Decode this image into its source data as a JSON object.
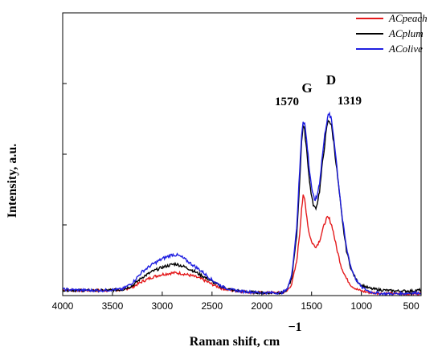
{
  "chart_data": {
    "type": "line",
    "xlabel": "Raman shift, cm",
    "xlabel_superscript": "−1",
    "ylabel": "Intensity, a.u.",
    "xlim": [
      4000,
      400
    ],
    "x_reversed": true,
    "x_ticks": [
      4000,
      3500,
      3000,
      2500,
      2000,
      1500,
      1000,
      500
    ],
    "y_tick_count": 4,
    "ylim": [
      0,
      100
    ],
    "legend_placement": "top-right",
    "annotations": {
      "G_label": "G",
      "D_label": "D",
      "G_position": "1570",
      "D_position": "1319"
    },
    "series": [
      {
        "name": "ACpeach",
        "color": "#e41a1c",
        "points": [
          [
            4000,
            2.0
          ],
          [
            3800,
            1.8
          ],
          [
            3600,
            1.8
          ],
          [
            3400,
            2.0
          ],
          [
            3300,
            3.0
          ],
          [
            3200,
            5.0
          ],
          [
            3100,
            6.5
          ],
          [
            3000,
            7.5
          ],
          [
            2900,
            8.0
          ],
          [
            2850,
            8.0
          ],
          [
            2800,
            7.8
          ],
          [
            2700,
            7.0
          ],
          [
            2600,
            5.8
          ],
          [
            2500,
            4.0
          ],
          [
            2400,
            2.5
          ],
          [
            2300,
            1.8
          ],
          [
            2200,
            1.4
          ],
          [
            2000,
            1.0
          ],
          [
            1800,
            1.0
          ],
          [
            1750,
            1.5
          ],
          [
            1700,
            4.0
          ],
          [
            1650,
            12.0
          ],
          [
            1620,
            22.0
          ],
          [
            1600,
            31.0
          ],
          [
            1585,
            35.0
          ],
          [
            1570,
            34.0
          ],
          [
            1555,
            30.0
          ],
          [
            1530,
            23.0
          ],
          [
            1500,
            19.0
          ],
          [
            1470,
            17.5
          ],
          [
            1450,
            17.5
          ],
          [
            1420,
            19.5
          ],
          [
            1390,
            23.0
          ],
          [
            1360,
            26.5
          ],
          [
            1340,
            27.5
          ],
          [
            1320,
            27.0
          ],
          [
            1290,
            24.0
          ],
          [
            1250,
            17.0
          ],
          [
            1200,
            10.0
          ],
          [
            1150,
            6.0
          ],
          [
            1100,
            3.5
          ],
          [
            1050,
            2.3
          ],
          [
            1000,
            1.6
          ],
          [
            900,
            1.0
          ],
          [
            800,
            0.8
          ],
          [
            700,
            0.7
          ],
          [
            600,
            0.6
          ],
          [
            500,
            0.6
          ],
          [
            400,
            0.7
          ]
        ]
      },
      {
        "name": "ACplum",
        "color": "#000000",
        "points": [
          [
            4000,
            2.0
          ],
          [
            3800,
            1.8
          ],
          [
            3600,
            1.8
          ],
          [
            3400,
            2.1
          ],
          [
            3300,
            3.5
          ],
          [
            3200,
            6.5
          ],
          [
            3100,
            8.5
          ],
          [
            3000,
            10.0
          ],
          [
            2900,
            11.0
          ],
          [
            2870,
            11.2
          ],
          [
            2800,
            10.5
          ],
          [
            2700,
            9.0
          ],
          [
            2600,
            7.0
          ],
          [
            2500,
            5.0
          ],
          [
            2400,
            3.0
          ],
          [
            2300,
            2.0
          ],
          [
            2200,
            1.5
          ],
          [
            2000,
            1.0
          ],
          [
            1800,
            1.0
          ],
          [
            1750,
            1.8
          ],
          [
            1700,
            6.0
          ],
          [
            1650,
            21.0
          ],
          [
            1620,
            40.0
          ],
          [
            1600,
            55.0
          ],
          [
            1585,
            60.0
          ],
          [
            1570,
            58.0
          ],
          [
            1550,
            52.0
          ],
          [
            1520,
            40.0
          ],
          [
            1490,
            33.0
          ],
          [
            1470,
            31.0
          ],
          [
            1450,
            31.5
          ],
          [
            1420,
            37.0
          ],
          [
            1390,
            47.0
          ],
          [
            1360,
            56.0
          ],
          [
            1340,
            61.0
          ],
          [
            1320,
            62.0
          ],
          [
            1300,
            60.0
          ],
          [
            1270,
            52.0
          ],
          [
            1230,
            39.0
          ],
          [
            1190,
            26.0
          ],
          [
            1150,
            16.0
          ],
          [
            1100,
            9.0
          ],
          [
            1050,
            5.5
          ],
          [
            1000,
            3.7
          ],
          [
            950,
            3.0
          ],
          [
            900,
            2.4
          ],
          [
            800,
            2.0
          ],
          [
            700,
            1.7
          ],
          [
            600,
            1.6
          ],
          [
            500,
            1.6
          ],
          [
            400,
            2.0
          ]
        ]
      },
      {
        "name": "AColive",
        "color": "#1f1fe0",
        "points": [
          [
            4000,
            2.2
          ],
          [
            3800,
            1.9
          ],
          [
            3600,
            1.8
          ],
          [
            3400,
            2.3
          ],
          [
            3300,
            4.5
          ],
          [
            3200,
            8.5
          ],
          [
            3100,
            11.0
          ],
          [
            3000,
            13.0
          ],
          [
            2900,
            14.5
          ],
          [
            2850,
            14.3
          ],
          [
            2800,
            13.5
          ],
          [
            2700,
            11.0
          ],
          [
            2600,
            8.5
          ],
          [
            2500,
            5.5
          ],
          [
            2400,
            3.2
          ],
          [
            2300,
            2.0
          ],
          [
            2200,
            1.5
          ],
          [
            2000,
            1.0
          ],
          [
            1800,
            1.0
          ],
          [
            1750,
            2.0
          ],
          [
            1700,
            7.0
          ],
          [
            1650,
            24.0
          ],
          [
            1620,
            44.0
          ],
          [
            1600,
            57.0
          ],
          [
            1585,
            62.0
          ],
          [
            1570,
            61.0
          ],
          [
            1550,
            55.0
          ],
          [
            1520,
            44.0
          ],
          [
            1490,
            36.0
          ],
          [
            1470,
            34.0
          ],
          [
            1450,
            34.5
          ],
          [
            1420,
            40.0
          ],
          [
            1390,
            50.0
          ],
          [
            1360,
            59.0
          ],
          [
            1340,
            63.0
          ],
          [
            1320,
            64.0
          ],
          [
            1300,
            62.0
          ],
          [
            1270,
            54.0
          ],
          [
            1230,
            40.0
          ],
          [
            1190,
            27.0
          ],
          [
            1150,
            17.0
          ],
          [
            1100,
            9.5
          ],
          [
            1050,
            5.5
          ],
          [
            1000,
            3.0
          ],
          [
            950,
            2.0
          ],
          [
            900,
            1.2
          ],
          [
            800,
            0.7
          ],
          [
            700,
            0.6
          ],
          [
            600,
            0.7
          ],
          [
            500,
            0.9
          ],
          [
            400,
            1.0
          ]
        ]
      }
    ]
  }
}
